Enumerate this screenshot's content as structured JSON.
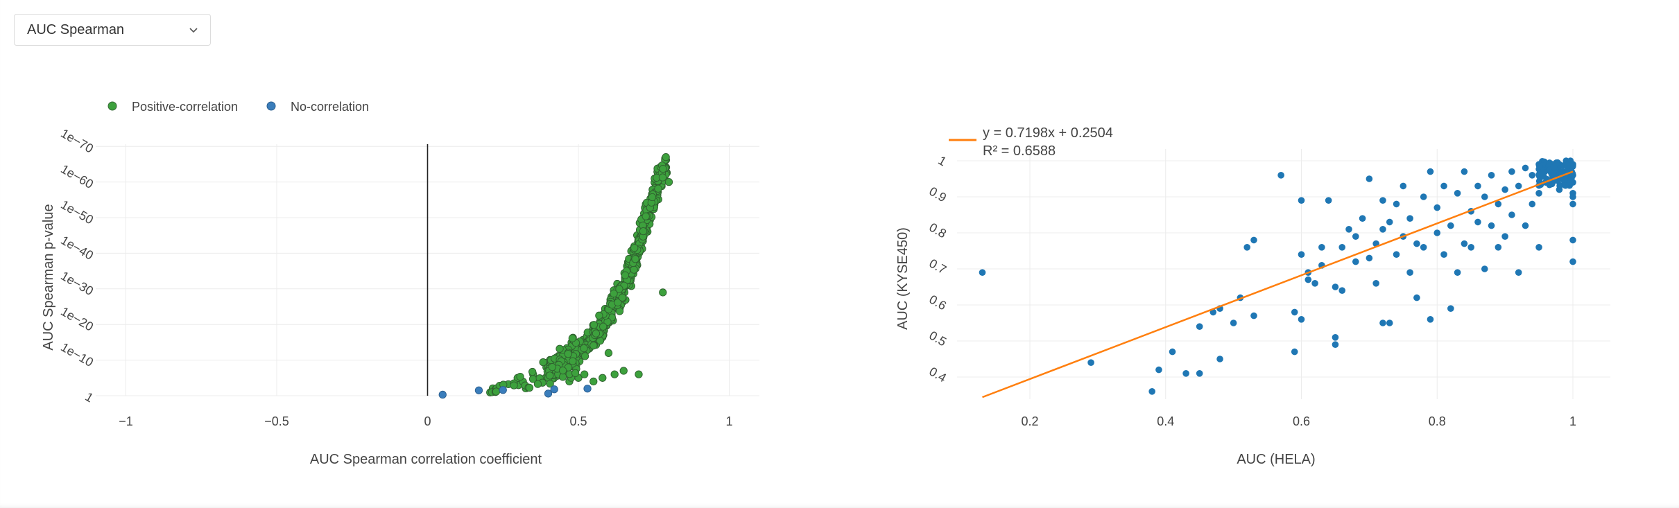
{
  "toolbar": {
    "metric_select_value": "AUC Spearman",
    "chevron_icon": "chevron-down-icon"
  },
  "chart_data": [
    {
      "type": "scatter",
      "title": "",
      "xlabel": "AUC Spearman correlation coefficient",
      "ylabel": "AUC Spearman p-value",
      "x_range": [
        -1.1,
        1.1
      ],
      "y_scale": "log (reversed)",
      "x_ticks": [
        "−1",
        "−0.5",
        "0",
        "0.5",
        "1"
      ],
      "y_ticks": [
        "1",
        "1e−10",
        "1e−20",
        "1e−30",
        "1e−40",
        "1e−50",
        "1e−60",
        "1e−70"
      ],
      "y_tick_exponents": [
        0,
        10,
        20,
        30,
        40,
        50,
        60,
        70
      ],
      "grid": true,
      "zero_line": true,
      "legend_position": "top-left",
      "colors": {
        "positive": "#3da13d",
        "none": "#3a7dbb"
      },
      "series": [
        {
          "name": "Positive-correlation",
          "color": "#3da13d",
          "trend_points": [
            [
              0.2,
              2
            ],
            [
              0.3,
              4
            ],
            [
              0.4,
              8
            ],
            [
              0.45,
              11
            ],
            [
              0.5,
              14
            ],
            [
              0.55,
              18
            ],
            [
              0.6,
              24
            ],
            [
              0.65,
              32
            ],
            [
              0.68,
              38
            ],
            [
              0.7,
              44
            ],
            [
              0.72,
              50
            ],
            [
              0.74,
              55
            ],
            [
              0.76,
              60
            ],
            [
              0.78,
              65
            ]
          ],
          "scatter_points": [
            [
              0.25,
              3
            ],
            [
              0.3,
              5
            ],
            [
              0.35,
              6
            ],
            [
              0.4,
              5
            ],
            [
              0.44,
              6
            ],
            [
              0.47,
              4
            ],
            [
              0.5,
              5
            ],
            [
              0.52,
              6
            ],
            [
              0.55,
              4
            ],
            [
              0.58,
              5
            ],
            [
              0.6,
              12
            ],
            [
              0.62,
              6
            ],
            [
              0.65,
              7
            ],
            [
              0.7,
              6
            ],
            [
              0.78,
              29
            ],
            [
              0.8,
              60
            ],
            [
              0.79,
              67
            ]
          ]
        },
        {
          "name": "No-correlation",
          "color": "#3a7dbb",
          "points": [
            [
              0.05,
              0.3
            ],
            [
              0.17,
              1.5
            ],
            [
              0.25,
              1.6
            ],
            [
              0.4,
              0.6
            ],
            [
              0.42,
              1.8
            ],
            [
              0.53,
              2.0
            ]
          ]
        }
      ]
    },
    {
      "type": "scatter",
      "title": "",
      "xlabel": "AUC (HELA)",
      "ylabel": "AUC (KYSE450)",
      "x_range": [
        0.12,
        1.07
      ],
      "y_range": [
        0.35,
        1.05
      ],
      "x_ticks": [
        0.2,
        0.4,
        0.6,
        0.8,
        1
      ],
      "y_ticks": [
        0.4,
        0.5,
        0.6,
        0.7,
        0.8,
        0.9,
        1
      ],
      "grid": true,
      "legend_position": "top-left",
      "colors": {
        "points": "#1f77b4",
        "fit": "#ff7f0e"
      },
      "regression": {
        "slope": 0.7198,
        "intercept": 0.2504,
        "equation": "y = 0.7198x + 0.2504",
        "r2": "R² = 0.6588"
      },
      "points": [
        [
          0.13,
          0.69
        ],
        [
          0.29,
          0.44
        ],
        [
          0.38,
          0.36
        ],
        [
          0.39,
          0.42
        ],
        [
          0.41,
          0.47
        ],
        [
          0.43,
          0.41
        ],
        [
          0.45,
          0.41
        ],
        [
          0.45,
          0.54
        ],
        [
          0.47,
          0.58
        ],
        [
          0.48,
          0.59
        ],
        [
          0.48,
          0.45
        ],
        [
          0.5,
          0.55
        ],
        [
          0.51,
          0.62
        ],
        [
          0.52,
          0.76
        ],
        [
          0.53,
          0.78
        ],
        [
          0.53,
          0.57
        ],
        [
          0.57,
          0.96
        ],
        [
          0.59,
          0.47
        ],
        [
          0.59,
          0.58
        ],
        [
          0.6,
          0.56
        ],
        [
          0.6,
          0.74
        ],
        [
          0.6,
          0.89
        ],
        [
          0.61,
          0.67
        ],
        [
          0.61,
          0.69
        ],
        [
          0.62,
          0.66
        ],
        [
          0.63,
          0.71
        ],
        [
          0.63,
          0.76
        ],
        [
          0.64,
          0.89
        ],
        [
          0.65,
          0.51
        ],
        [
          0.65,
          0.49
        ],
        [
          0.65,
          0.65
        ],
        [
          0.66,
          0.64
        ],
        [
          0.66,
          0.76
        ],
        [
          0.67,
          0.81
        ],
        [
          0.68,
          0.79
        ],
        [
          0.68,
          0.72
        ],
        [
          0.69,
          0.84
        ],
        [
          0.7,
          0.73
        ],
        [
          0.7,
          0.95
        ],
        [
          0.71,
          0.66
        ],
        [
          0.71,
          0.77
        ],
        [
          0.72,
          0.55
        ],
        [
          0.72,
          0.81
        ],
        [
          0.72,
          0.89
        ],
        [
          0.73,
          0.55
        ],
        [
          0.73,
          0.83
        ],
        [
          0.74,
          0.74
        ],
        [
          0.74,
          0.88
        ],
        [
          0.75,
          0.79
        ],
        [
          0.75,
          0.93
        ],
        [
          0.76,
          0.69
        ],
        [
          0.76,
          0.84
        ],
        [
          0.77,
          0.62
        ],
        [
          0.77,
          0.77
        ],
        [
          0.78,
          0.9
        ],
        [
          0.78,
          0.76
        ],
        [
          0.79,
          0.56
        ],
        [
          0.79,
          0.97
        ],
        [
          0.8,
          0.8
        ],
        [
          0.8,
          0.87
        ],
        [
          0.81,
          0.93
        ],
        [
          0.81,
          0.74
        ],
        [
          0.82,
          0.59
        ],
        [
          0.82,
          0.82
        ],
        [
          0.83,
          0.69
        ],
        [
          0.83,
          0.91
        ],
        [
          0.84,
          0.77
        ],
        [
          0.84,
          0.97
        ],
        [
          0.85,
          0.86
        ],
        [
          0.85,
          0.76
        ],
        [
          0.86,
          0.93
        ],
        [
          0.86,
          0.83
        ],
        [
          0.87,
          0.9
        ],
        [
          0.87,
          0.7
        ],
        [
          0.88,
          0.82
        ],
        [
          0.88,
          0.96
        ],
        [
          0.89,
          0.88
        ],
        [
          0.89,
          0.76
        ],
        [
          0.9,
          0.92
        ],
        [
          0.9,
          0.79
        ],
        [
          0.91,
          0.97
        ],
        [
          0.91,
          0.85
        ],
        [
          0.92,
          0.69
        ],
        [
          0.92,
          0.93
        ],
        [
          0.93,
          0.82
        ],
        [
          0.94,
          0.96
        ],
        [
          0.94,
          0.88
        ],
        [
          0.95,
          0.91
        ],
        [
          0.95,
          0.76
        ],
        [
          0.96,
          0.98
        ],
        [
          0.96,
          0.94
        ],
        [
          0.97,
          0.95
        ],
        [
          0.97,
          0.99
        ],
        [
          0.98,
          0.96
        ],
        [
          0.98,
          0.92
        ],
        [
          0.99,
          0.97
        ],
        [
          0.99,
          1.0
        ],
        [
          1.0,
          0.99
        ],
        [
          1.0,
          0.96
        ],
        [
          1.0,
          0.94
        ],
        [
          1.0,
          0.91
        ],
        [
          1.0,
          0.88
        ],
        [
          1.0,
          0.78
        ],
        [
          1.0,
          0.72
        ],
        [
          1.0,
          0.9
        ],
        [
          0.99,
          0.94
        ],
        [
          0.97,
          0.97
        ],
        [
          0.95,
          0.99
        ],
        [
          0.93,
          0.98
        ],
        [
          0.98,
          0.99
        ]
      ]
    }
  ]
}
